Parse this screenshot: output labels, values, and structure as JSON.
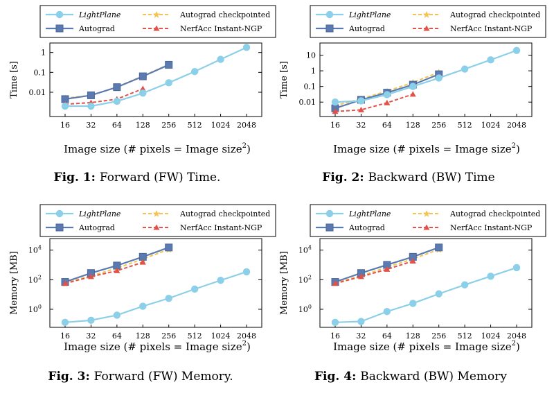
{
  "colors": {
    "lightplane": "#8ccfe8",
    "autograd": "#5b7bb0",
    "autograd_checkpointed": "#f3c452",
    "nerfacc": "#e0524a"
  },
  "legend": {
    "lightplane": "LightPlane",
    "autograd": "Autograd",
    "autograd_checkpointed": "Autograd checkpointed",
    "nerfacc": "NerfAcc Instant-NGP"
  },
  "chart_data": [
    {
      "type": "line",
      "id": "fw-time",
      "caption_num": "Fig. 1:",
      "caption_text": "Forward (FW) Time.",
      "xlabel": "Image size (# pixels = Image size",
      "xlabel_sup": "2",
      "xlabel_end": ")",
      "ylabel": "Time [s]",
      "yscale": "log",
      "ylim": [
        0.0006,
        3
      ],
      "yticks": [
        {
          "v": 0.01,
          "label": "0.01"
        },
        {
          "v": 0.1,
          "label": "0.1"
        },
        {
          "v": 1,
          "label": "1"
        }
      ],
      "categories": [
        "16",
        "32",
        "64",
        "128",
        "256",
        "512",
        "1024",
        "2048"
      ],
      "series": [
        {
          "key": "autograd_checkpointed",
          "values": [
            0.005,
            0.007,
            0.018,
            0.065,
            0.25,
            null,
            null,
            null
          ]
        },
        {
          "key": "autograd",
          "values": [
            0.0045,
            0.007,
            0.018,
            0.063,
            0.24,
            null,
            null,
            null
          ]
        },
        {
          "key": "nerfacc",
          "values": [
            0.0025,
            0.003,
            0.0045,
            0.015,
            null,
            null,
            null,
            null
          ]
        },
        {
          "key": "lightplane",
          "values": [
            0.002,
            0.002,
            0.0035,
            0.009,
            0.03,
            0.11,
            0.45,
            1.8
          ]
        }
      ]
    },
    {
      "type": "line",
      "id": "bw-time",
      "caption_num": "Fig. 2:",
      "caption_text": "Backward (BW) Time",
      "xlabel": "Image size (# pixels = Image size",
      "xlabel_sup": "2",
      "xlabel_end": ")",
      "ylabel": "Time [s]",
      "yscale": "log",
      "ylim": [
        0.0012,
        60
      ],
      "yticks": [
        {
          "v": 0.01,
          "label": "0.01"
        },
        {
          "v": 0.1,
          "label": "0.1"
        },
        {
          "v": 1,
          "label": "1"
        },
        {
          "v": 10,
          "label": "10"
        }
      ],
      "categories": [
        "16",
        "32",
        "64",
        "128",
        "256",
        "512",
        "1024",
        "2048"
      ],
      "series": [
        {
          "key": "autograd_checkpointed",
          "values": [
            0.006,
            0.016,
            0.05,
            0.18,
            0.8,
            null,
            null,
            null
          ]
        },
        {
          "key": "autograd",
          "values": [
            0.004,
            0.014,
            0.04,
            0.13,
            0.6,
            null,
            null,
            null
          ]
        },
        {
          "key": "nerfacc",
          "values": [
            0.0025,
            0.0032,
            0.009,
            0.032,
            null,
            null,
            null,
            null
          ]
        },
        {
          "key": "lightplane",
          "values": [
            0.01,
            0.012,
            0.03,
            0.1,
            0.35,
            1.3,
            5,
            20
          ]
        }
      ]
    },
    {
      "type": "line",
      "id": "fw-memory",
      "caption_num": "Fig. 3:",
      "caption_text": "Forward (FW) Memory.",
      "xlabel": "Image size (# pixels = Image size",
      "xlabel_sup": "2",
      "xlabel_end": ")",
      "ylabel": "Memory [MB]",
      "yscale": "log",
      "ylim": [
        0.06,
        60000
      ],
      "yticks": [
        {
          "v": 1,
          "label": "10",
          "sup": "0"
        },
        {
          "v": 100,
          "label": "10",
          "sup": "2"
        },
        {
          "v": 10000,
          "label": "10",
          "sup": "4"
        }
      ],
      "categories": [
        "16",
        "32",
        "64",
        "128",
        "256",
        "512",
        "1024",
        "2048"
      ],
      "series": [
        {
          "key": "autograd_checkpointed",
          "values": [
            60,
            180,
            600,
            2500,
            11000,
            null,
            null,
            null
          ]
        },
        {
          "key": "autograd",
          "values": [
            70,
            280,
            900,
            3500,
            15000,
            null,
            null,
            null
          ]
        },
        {
          "key": "nerfacc",
          "values": [
            55,
            160,
            400,
            1500,
            null,
            null,
            null,
            null
          ]
        },
        {
          "key": "lightplane",
          "values": [
            0.13,
            0.18,
            0.4,
            1.6,
            5.5,
            23,
            90,
            340
          ]
        }
      ]
    },
    {
      "type": "line",
      "id": "bw-memory",
      "caption_num": "Fig. 4:",
      "caption_text": "Backward (BW) Memory",
      "xlabel": "Image size (# pixels = Image size",
      "xlabel_sup": "2",
      "xlabel_end": ")",
      "ylabel": "Memory [MB]",
      "yscale": "log",
      "ylim": [
        0.06,
        60000
      ],
      "yticks": [
        {
          "v": 1,
          "label": "10",
          "sup": "0"
        },
        {
          "v": 100,
          "label": "10",
          "sup": "2"
        },
        {
          "v": 10000,
          "label": "10",
          "sup": "4"
        }
      ],
      "categories": [
        "16",
        "32",
        "64",
        "128",
        "256",
        "512",
        "1024",
        "2048"
      ],
      "series": [
        {
          "key": "autograd_checkpointed",
          "values": [
            60,
            180,
            700,
            2500,
            11000,
            null,
            null,
            null
          ]
        },
        {
          "key": "autograd",
          "values": [
            70,
            280,
            1000,
            3500,
            15000,
            null,
            null,
            null
          ]
        },
        {
          "key": "nerfacc",
          "values": [
            55,
            160,
            500,
            1800,
            null,
            null,
            null,
            null
          ]
        },
        {
          "key": "lightplane",
          "values": [
            0.13,
            0.15,
            0.7,
            2.5,
            11,
            45,
            170,
            650
          ]
        }
      ]
    }
  ]
}
